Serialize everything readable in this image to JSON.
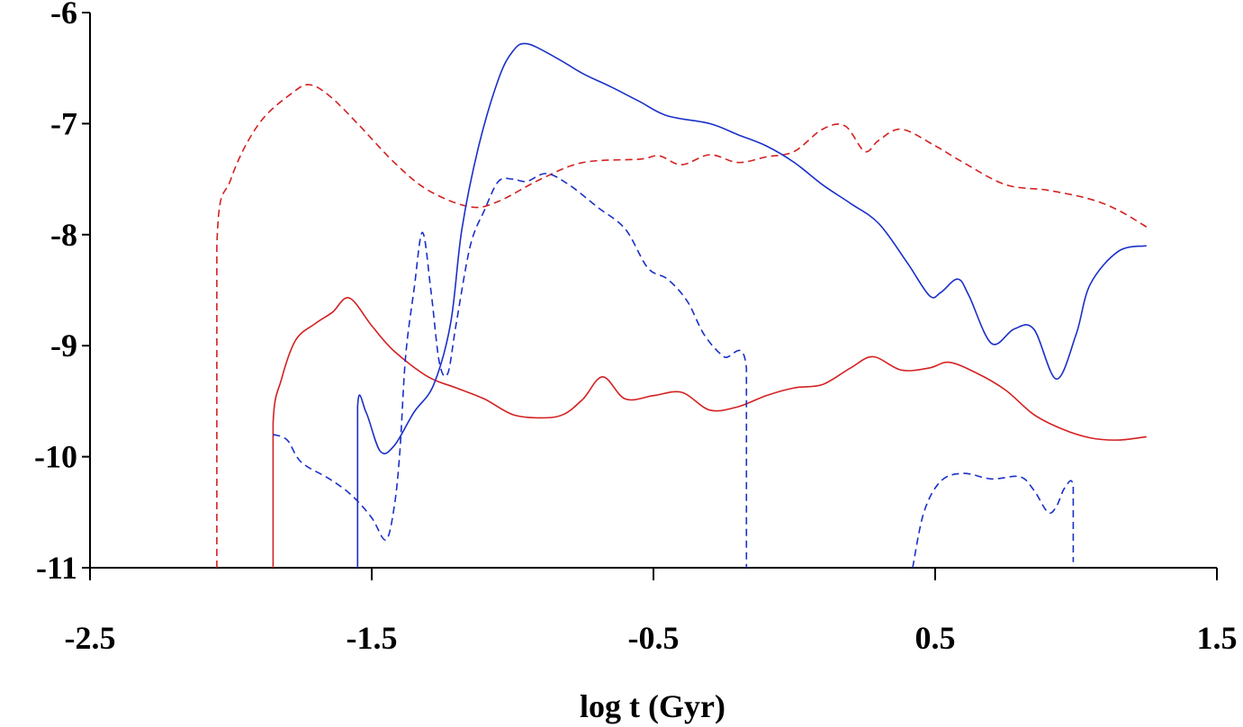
{
  "chart_data": {
    "type": "line",
    "title": "",
    "xlabel": "log t (Gyr)",
    "ylabel": "",
    "xlim": [
      -2.5,
      1.5
    ],
    "ylim": [
      -11,
      -6
    ],
    "xticks": [
      -2.5,
      -1.5,
      -0.5,
      0.5,
      1.5
    ],
    "xtick_labels": [
      "-2.5",
      "-1.5",
      "-0.5",
      "0.5",
      "1.5"
    ],
    "yticks": [
      -6,
      -7,
      -8,
      -9,
      -10,
      -11
    ],
    "ytick_labels": [
      "-6",
      "-7",
      "-8",
      "-9",
      "-10",
      "-11"
    ],
    "grid": false,
    "legend": null,
    "colors": {
      "red": "#d42020",
      "blue": "#1a2fc8",
      "axis": "#000000"
    },
    "series": [
      {
        "name": "red-dashed",
        "color": "#d42020",
        "dash": true,
        "points": [
          [
            -2.05,
            -11.0
          ],
          [
            -2.05,
            -8.1
          ],
          [
            -2.0,
            -7.5
          ],
          [
            -1.9,
            -7.0
          ],
          [
            -1.78,
            -6.72
          ],
          [
            -1.72,
            -6.65
          ],
          [
            -1.65,
            -6.75
          ],
          [
            -1.55,
            -7.0
          ],
          [
            -1.42,
            -7.35
          ],
          [
            -1.3,
            -7.6
          ],
          [
            -1.15,
            -7.75
          ],
          [
            -1.05,
            -7.7
          ],
          [
            -0.9,
            -7.5
          ],
          [
            -0.75,
            -7.35
          ],
          [
            -0.55,
            -7.32
          ],
          [
            -0.48,
            -7.29
          ],
          [
            -0.4,
            -7.37
          ],
          [
            -0.3,
            -7.28
          ],
          [
            -0.2,
            -7.35
          ],
          [
            -0.1,
            -7.3
          ],
          [
            0.0,
            -7.25
          ],
          [
            0.1,
            -7.05
          ],
          [
            0.18,
            -7.02
          ],
          [
            0.25,
            -7.25
          ],
          [
            0.3,
            -7.15
          ],
          [
            0.38,
            -7.05
          ],
          [
            0.5,
            -7.2
          ],
          [
            0.6,
            -7.35
          ],
          [
            0.75,
            -7.55
          ],
          [
            0.9,
            -7.6
          ],
          [
            1.05,
            -7.68
          ],
          [
            1.15,
            -7.78
          ],
          [
            1.25,
            -7.93
          ]
        ]
      },
      {
        "name": "red-solid",
        "color": "#d42020",
        "dash": false,
        "points": [
          [
            -1.85,
            -11.0
          ],
          [
            -1.85,
            -9.7
          ],
          [
            -1.82,
            -9.3
          ],
          [
            -1.77,
            -8.95
          ],
          [
            -1.7,
            -8.8
          ],
          [
            -1.64,
            -8.7
          ],
          [
            -1.58,
            -8.57
          ],
          [
            -1.5,
            -8.82
          ],
          [
            -1.42,
            -9.05
          ],
          [
            -1.3,
            -9.28
          ],
          [
            -1.2,
            -9.38
          ],
          [
            -1.1,
            -9.48
          ],
          [
            -1.0,
            -9.62
          ],
          [
            -0.9,
            -9.65
          ],
          [
            -0.82,
            -9.62
          ],
          [
            -0.75,
            -9.48
          ],
          [
            -0.68,
            -9.28
          ],
          [
            -0.6,
            -9.48
          ],
          [
            -0.5,
            -9.45
          ],
          [
            -0.4,
            -9.42
          ],
          [
            -0.3,
            -9.58
          ],
          [
            -0.2,
            -9.55
          ],
          [
            -0.1,
            -9.45
          ],
          [
            0.0,
            -9.38
          ],
          [
            0.1,
            -9.35
          ],
          [
            0.2,
            -9.2
          ],
          [
            0.28,
            -9.1
          ],
          [
            0.38,
            -9.22
          ],
          [
            0.48,
            -9.2
          ],
          [
            0.55,
            -9.15
          ],
          [
            0.65,
            -9.25
          ],
          [
            0.75,
            -9.4
          ],
          [
            0.85,
            -9.62
          ],
          [
            0.95,
            -9.75
          ],
          [
            1.05,
            -9.83
          ],
          [
            1.15,
            -9.85
          ],
          [
            1.25,
            -9.82
          ]
        ]
      },
      {
        "name": "blue-solid",
        "color": "#1a2fc8",
        "dash": false,
        "points": [
          [
            -1.55,
            -11.0
          ],
          [
            -1.55,
            -9.55
          ],
          [
            -1.52,
            -9.6
          ],
          [
            -1.47,
            -9.95
          ],
          [
            -1.42,
            -9.9
          ],
          [
            -1.35,
            -9.6
          ],
          [
            -1.28,
            -9.35
          ],
          [
            -1.22,
            -8.8
          ],
          [
            -1.18,
            -7.95
          ],
          [
            -1.12,
            -7.2
          ],
          [
            -1.05,
            -6.6
          ],
          [
            -1.0,
            -6.35
          ],
          [
            -0.95,
            -6.28
          ],
          [
            -0.85,
            -6.4
          ],
          [
            -0.75,
            -6.55
          ],
          [
            -0.65,
            -6.67
          ],
          [
            -0.55,
            -6.8
          ],
          [
            -0.45,
            -6.93
          ],
          [
            -0.3,
            -7.0
          ],
          [
            -0.2,
            -7.1
          ],
          [
            -0.1,
            -7.2
          ],
          [
            0.0,
            -7.35
          ],
          [
            0.1,
            -7.55
          ],
          [
            0.2,
            -7.72
          ],
          [
            0.3,
            -7.9
          ],
          [
            0.4,
            -8.25
          ],
          [
            0.48,
            -8.55
          ],
          [
            0.52,
            -8.52
          ],
          [
            0.58,
            -8.4
          ],
          [
            0.62,
            -8.55
          ],
          [
            0.7,
            -8.98
          ],
          [
            0.78,
            -8.85
          ],
          [
            0.85,
            -8.85
          ],
          [
            0.93,
            -9.3
          ],
          [
            1.0,
            -8.9
          ],
          [
            1.05,
            -8.45
          ],
          [
            1.15,
            -8.15
          ],
          [
            1.25,
            -8.1
          ]
        ]
      },
      {
        "name": "blue-dashed-1",
        "color": "#1a2fc8",
        "dash": true,
        "points": [
          [
            -1.85,
            -9.8
          ],
          [
            -1.8,
            -9.85
          ],
          [
            -1.75,
            -10.05
          ],
          [
            -1.65,
            -10.2
          ],
          [
            -1.57,
            -10.35
          ],
          [
            -1.5,
            -10.55
          ],
          [
            -1.45,
            -10.75
          ],
          [
            -1.42,
            -10.45
          ],
          [
            -1.4,
            -9.95
          ],
          [
            -1.38,
            -9.1
          ],
          [
            -1.35,
            -8.5
          ],
          [
            -1.32,
            -7.98
          ],
          [
            -1.29,
            -8.5
          ],
          [
            -1.26,
            -9.15
          ],
          [
            -1.23,
            -9.25
          ],
          [
            -1.2,
            -8.8
          ],
          [
            -1.15,
            -8.1
          ],
          [
            -1.1,
            -7.78
          ],
          [
            -1.05,
            -7.52
          ],
          [
            -1.0,
            -7.5
          ],
          [
            -0.95,
            -7.52
          ],
          [
            -0.88,
            -7.45
          ],
          [
            -0.8,
            -7.55
          ],
          [
            -0.7,
            -7.75
          ],
          [
            -0.6,
            -7.95
          ],
          [
            -0.52,
            -8.3
          ],
          [
            -0.45,
            -8.4
          ],
          [
            -0.38,
            -8.6
          ],
          [
            -0.32,
            -8.9
          ],
          [
            -0.25,
            -9.1
          ],
          [
            -0.17,
            -9.2
          ],
          [
            -0.17,
            -11.0
          ]
        ]
      },
      {
        "name": "blue-dashed-2",
        "color": "#1a2fc8",
        "dash": true,
        "points": [
          [
            0.42,
            -11.0
          ],
          [
            0.46,
            -10.5
          ],
          [
            0.52,
            -10.22
          ],
          [
            0.6,
            -10.15
          ],
          [
            0.7,
            -10.2
          ],
          [
            0.8,
            -10.18
          ],
          [
            0.85,
            -10.3
          ],
          [
            0.9,
            -10.5
          ],
          [
            0.93,
            -10.45
          ],
          [
            0.96,
            -10.28
          ],
          [
            0.99,
            -10.27
          ],
          [
            0.99,
            -10.95
          ]
        ]
      }
    ]
  }
}
